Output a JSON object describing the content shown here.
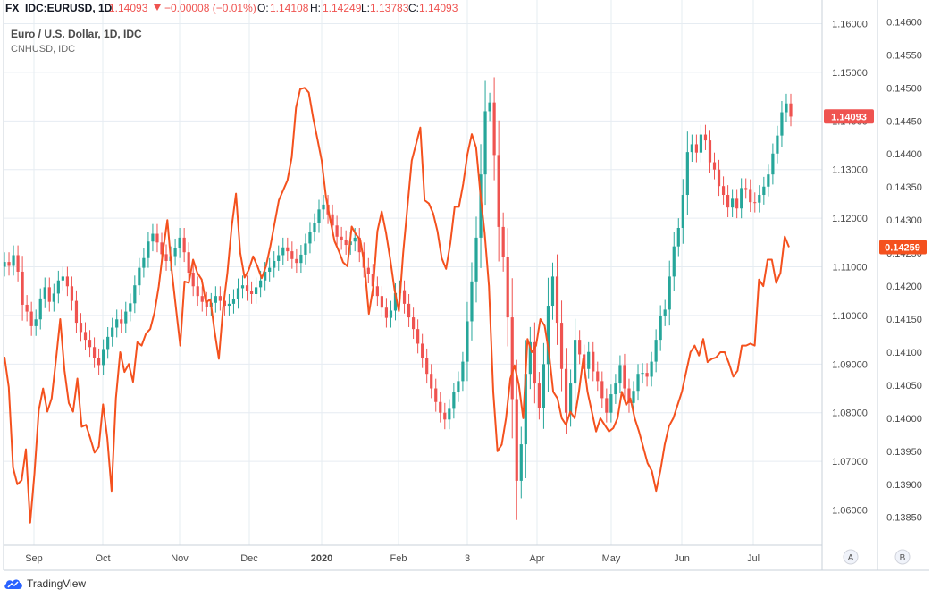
{
  "header": {
    "symbol": "FX_IDC:EURUSD, 1D",
    "last": "1.14093",
    "change": "−0.00008 (−0.01%)",
    "o_label": "O:",
    "o": "1.14108",
    "h_label": "H:",
    "h": "1.14249",
    "l_label": "L:",
    "l": "1.13783",
    "c_label": "C:",
    "c": "1.14093"
  },
  "legend": {
    "line1": "Euro / U.S. Dollar, 1D, IDC",
    "line2": "CNHUSD, IDC"
  },
  "colors": {
    "up": "#26a69a",
    "down": "#ef5350",
    "line": "#f4511e",
    "grid": "#e6ecf2",
    "axis_text": "#4a4a4a",
    "price_label": "#ef5350",
    "line_label": "#f4511e"
  },
  "scale_buttons": {
    "a": "A",
    "b": "B"
  },
  "branding": "TradingView",
  "chart_data": {
    "type": "candlestick+line",
    "x_ticks": [
      "Sep",
      "Oct",
      "Nov",
      "Dec",
      "2020",
      "Feb",
      "3",
      "Apr",
      "May",
      "Jun",
      "Jul"
    ],
    "axis_A": {
      "ticks": [
        "1.06000",
        "1.07000",
        "1.08000",
        "1.09000",
        "1.10000",
        "1.11000",
        "1.12000",
        "1.13000",
        "1.14000",
        "1.15000",
        "1.16000"
      ],
      "range": [
        1.0555,
        1.1612
      ]
    },
    "axis_B": {
      "ticks": [
        "0.13850",
        "0.13900",
        "0.13950",
        "0.14000",
        "0.14050",
        "0.14100",
        "0.14150",
        "0.14200",
        "0.14250",
        "0.14300",
        "0.14350",
        "0.14400",
        "0.14450",
        "0.14500",
        "0.14550",
        "0.14600"
      ],
      "range": [
        0.13828,
        0.14606
      ]
    },
    "last_price_A": "1.14093",
    "last_price_B": "0.14259",
    "series": [
      {
        "kind": "candlestick",
        "closes": [
          1.111,
          1.1102,
          1.1124,
          1.109,
          1.1022,
          1.1008,
          1.0978,
          1.0992,
          1.1035,
          1.1058,
          1.1028,
          1.1045,
          1.1072,
          1.108,
          1.106,
          1.103,
          1.0985,
          1.0966,
          1.095,
          1.0935,
          1.0912,
          1.0898,
          1.0931,
          1.0956,
          1.0975,
          1.0992,
          1.0984,
          1.1008,
          1.1025,
          1.1062,
          1.1098,
          1.1118,
          1.1152,
          1.1168,
          1.115,
          1.1126,
          1.1112,
          1.1122,
          1.1138,
          1.116,
          1.113,
          1.1088,
          1.106,
          1.104,
          1.1028,
          1.1018,
          1.1026,
          1.104,
          1.103,
          1.102,
          1.1024,
          1.1034,
          1.1056,
          1.1062,
          1.105,
          1.1044,
          1.1058,
          1.1072,
          1.109,
          1.1098,
          1.1112,
          1.1124,
          1.114,
          1.1132,
          1.1116,
          1.1108,
          1.1125,
          1.1148,
          1.1172,
          1.119,
          1.1218,
          1.1228,
          1.1208,
          1.1185,
          1.1162,
          1.1155,
          1.1145,
          1.1152,
          1.116,
          1.113,
          1.1098,
          1.1086,
          1.106,
          1.104,
          1.1016,
          1.0995,
          1.101,
          1.1046,
          1.1052,
          1.1024,
          1.0996,
          1.0972,
          1.0942,
          1.0912,
          1.088,
          1.085,
          1.0822,
          1.08,
          1.0786,
          1.0808,
          1.0842,
          1.0865,
          1.0905,
          1.0988,
          1.107,
          1.116,
          1.129,
          1.142,
          1.1438,
          1.133,
          1.1182,
          1.112,
          1.0996,
          1.0828,
          1.066,
          1.0735,
          1.088,
          1.0945,
          1.086,
          1.081,
          1.09,
          1.102,
          1.108,
          1.0985,
          1.089,
          1.08,
          1.086,
          1.095,
          1.092,
          1.089,
          1.0925,
          1.0885,
          1.0865,
          1.083,
          1.08,
          1.0838,
          1.086,
          1.0898,
          1.085,
          1.082,
          1.0845,
          1.088,
          1.0882,
          1.0874,
          1.0905,
          1.095,
          1.0998,
          1.1012,
          1.108,
          1.1142,
          1.118,
          1.1248,
          1.1336,
          1.1352,
          1.1335,
          1.1372,
          1.136,
          1.1315,
          1.13,
          1.1266,
          1.1248,
          1.1222,
          1.124,
          1.122,
          1.1262,
          1.126,
          1.1233,
          1.1232,
          1.1248,
          1.1265,
          1.129,
          1.1333,
          1.137,
          1.1418,
          1.1436,
          1.1409
        ]
      },
      {
        "kind": "line",
        "values": [
          0.14093,
          0.14047,
          0.13925,
          0.139,
          0.13906,
          0.13953,
          0.13842,
          0.13917,
          0.14012,
          0.14045,
          0.1401,
          0.1403,
          0.14088,
          0.1415,
          0.14072,
          0.14023,
          0.1401,
          0.1406,
          0.13987,
          0.1399,
          0.1397,
          0.13948,
          0.13957,
          0.14021,
          0.1397,
          0.1389,
          0.1403,
          0.141,
          0.1407,
          0.14082,
          0.14055,
          0.14115,
          0.1411,
          0.14128,
          0.14135,
          0.1416,
          0.142,
          0.14254,
          0.143,
          0.14225,
          0.14167,
          0.1411,
          0.14207,
          0.14205,
          0.1424,
          0.1422,
          0.1421,
          0.14175,
          0.1418,
          0.14132,
          0.1409,
          0.14168,
          0.1422,
          0.1429,
          0.1434,
          0.1425,
          0.14213,
          0.14225,
          0.14245,
          0.1423,
          0.14212,
          0.1423,
          0.1426,
          0.14295,
          0.1433,
          0.14345,
          0.1436,
          0.14395,
          0.1447,
          0.14498,
          0.145,
          0.14493,
          0.14455,
          0.14423,
          0.1439,
          0.14335,
          0.143,
          0.14268,
          0.14253,
          0.14236,
          0.1423,
          0.1429,
          0.14278,
          0.1427,
          0.14231,
          0.14158,
          0.14198,
          0.14283,
          0.14313,
          0.14281,
          0.1424,
          0.14194,
          0.14162,
          0.1425,
          0.1432,
          0.1439,
          0.14415,
          0.1444,
          0.1433,
          0.14325,
          0.1431,
          0.14283,
          0.14242,
          0.14226,
          0.14265,
          0.1432,
          0.1432,
          0.14355,
          0.144,
          0.1443,
          0.1441,
          0.1434,
          0.1428,
          0.142,
          0.1404,
          0.1395,
          0.1396,
          0.14,
          0.1406,
          0.1408,
          0.1405,
          0.14,
          0.1412,
          0.141,
          0.1411,
          0.1415,
          0.1414,
          0.141,
          0.1404,
          0.1403,
          0.14,
          0.1399,
          0.1401,
          0.14,
          0.1404,
          0.1409,
          0.1404,
          0.1401,
          0.1398,
          0.14,
          0.1399,
          0.1398,
          0.13985,
          0.14,
          0.1404,
          0.1402,
          0.1403,
          0.14,
          0.1398,
          0.13956,
          0.13932,
          0.1392,
          0.1389,
          0.13921,
          0.1396,
          0.13988,
          0.14,
          0.1402,
          0.1404,
          0.1407,
          0.141,
          0.1411,
          0.14095,
          0.1412,
          0.14085,
          0.1409,
          0.14092,
          0.141,
          0.141,
          0.14083,
          0.14063,
          0.14072,
          0.1411,
          0.1411,
          0.14113,
          0.1411,
          0.1421,
          0.142,
          0.1424,
          0.1424,
          0.14205,
          0.1422,
          0.14275,
          0.14259
        ]
      }
    ]
  }
}
